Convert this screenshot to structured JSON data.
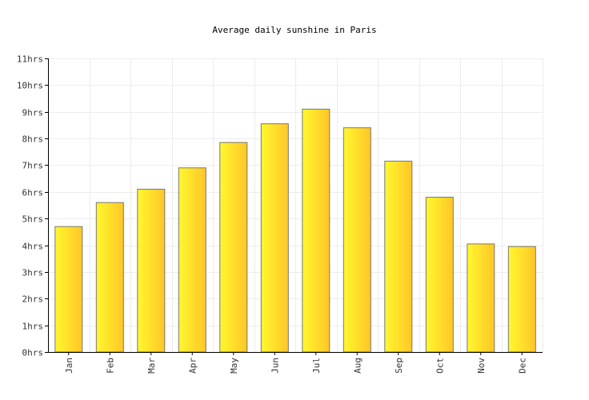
{
  "chart_data": {
    "type": "bar",
    "title": "Average daily sunshine in Paris",
    "xlabel": "",
    "ylabel": "",
    "categories": [
      "Jan",
      "Feb",
      "Mar",
      "Apr",
      "May",
      "Jun",
      "Jul",
      "Aug",
      "Sep",
      "Oct",
      "Nov",
      "Dec"
    ],
    "values": [
      4.7,
      5.6,
      6.1,
      6.9,
      7.85,
      8.55,
      9.1,
      8.4,
      7.15,
      5.8,
      4.05,
      3.95
    ],
    "ylim": [
      0,
      11
    ],
    "yticks": [
      "0hrs",
      "1hrs",
      "2hrs",
      "3hrs",
      "4hrs",
      "5hrs",
      "6hrs",
      "7hrs",
      "8hrs",
      "9hrs",
      "10hrs",
      "11hrs"
    ],
    "grid": true,
    "legend": "none",
    "colors": {
      "bar_light": "#fff72e",
      "bar_dark": "#ffc628",
      "bar_stroke": "#777777",
      "grid": "#ececec",
      "axis": "#000000"
    }
  }
}
